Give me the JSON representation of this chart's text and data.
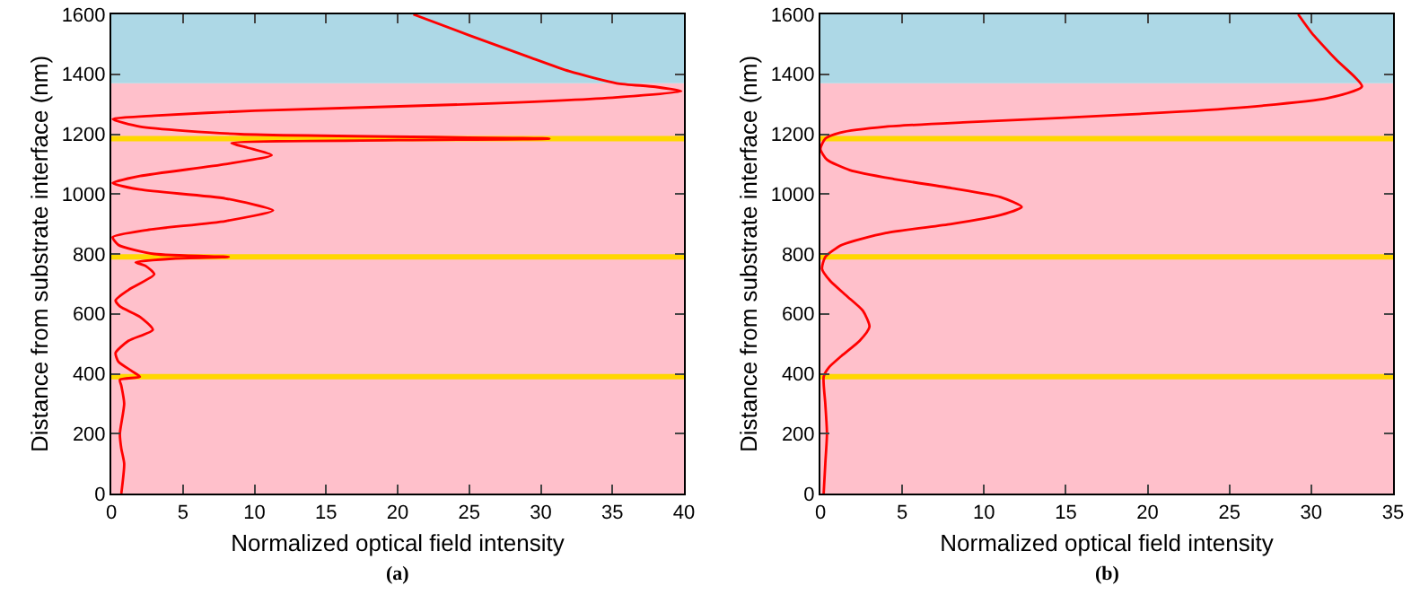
{
  "chart_data": [
    {
      "type": "line",
      "xlabel": "Normalized optical field intensity",
      "ylabel": "Distance from substrate interface (nm)",
      "xlim": [
        0,
        40
      ],
      "xticks": [
        0,
        5,
        10,
        15,
        20,
        25,
        30,
        35,
        40
      ],
      "ylim": [
        0,
        1600
      ],
      "yticks": [
        0,
        200,
        400,
        600,
        800,
        1000,
        1200,
        1400,
        1600
      ],
      "grid": false,
      "annotations": [
        "(a)"
      ],
      "bands": [
        {
          "axis": "y",
          "from": 0,
          "to": 1370,
          "color": "#ffc0cb"
        },
        {
          "axis": "y",
          "from": 1370,
          "to": 1600,
          "color": "#add8e6"
        }
      ],
      "ref_lines": [
        {
          "axis": "y",
          "value": 390,
          "color": "#ffd700"
        },
        {
          "axis": "y",
          "value": 790,
          "color": "#ffd700"
        },
        {
          "axis": "y",
          "value": 1185,
          "color": "#ffd700"
        }
      ],
      "series": [
        {
          "color": "#ff0000",
          "x": [
            0.7,
            0.9,
            0.7,
            0.6,
            0.9,
            0.7,
            0.6,
            2.0,
            1.4,
            0.5,
            0.3,
            1.2,
            2.9,
            2.0,
            0.6,
            0.3,
            1.2,
            3.0,
            2.4,
            1.7,
            4.5,
            8.2,
            3.0,
            0.5,
            0.1,
            2.5,
            8.0,
            11.3,
            8.0,
            2.0,
            0.1,
            2.0,
            8.0,
            11.2,
            9.5,
            8.4,
            20.0,
            30.6,
            9.0,
            2.0,
            0.1,
            3.0,
            10.0,
            25.0,
            35.0,
            39.8,
            38.0,
            35.3,
            32.0,
            29.1,
            25.0,
            21.1
          ],
          "values": [
            0,
            100,
            150,
            200,
            300,
            360,
            380,
            390,
            410,
            440,
            470,
            510,
            547,
            590,
            625,
            645,
            680,
            732,
            760,
            772,
            785,
            790,
            800,
            830,
            856,
            880,
            910,
            945,
            985,
            1015,
            1037,
            1060,
            1100,
            1130,
            1155,
            1170,
            1180,
            1185,
            1200,
            1225,
            1250,
            1262,
            1278,
            1300,
            1322,
            1343,
            1358,
            1370,
            1410,
            1459,
            1530,
            1600
          ]
        }
      ]
    },
    {
      "type": "line",
      "xlabel": "Normalized optical field intensity",
      "ylabel": "Distance from substrate interface (nm)",
      "xlim": [
        0,
        35
      ],
      "xticks": [
        0,
        5,
        10,
        15,
        20,
        25,
        30,
        35
      ],
      "ylim": [
        0,
        1600
      ],
      "yticks": [
        0,
        200,
        400,
        600,
        800,
        1000,
        1200,
        1400,
        1600
      ],
      "grid": false,
      "annotations": [
        "(b)"
      ],
      "bands": [
        {
          "axis": "y",
          "from": 0,
          "to": 1370,
          "color": "#ffc0cb"
        },
        {
          "axis": "y",
          "from": 1370,
          "to": 1600,
          "color": "#add8e6"
        }
      ],
      "ref_lines": [
        {
          "axis": "y",
          "value": 390,
          "color": "#ffd700"
        },
        {
          "axis": "y",
          "value": 790,
          "color": "#ffd700"
        },
        {
          "axis": "y",
          "value": 1185,
          "color": "#ffd700"
        }
      ],
      "series": [
        {
          "color": "#ff0000",
          "x": [
            0.2,
            0.3,
            0.4,
            0.3,
            0.2,
            0.5,
            1.3,
            2.4,
            3.0,
            2.6,
            1.6,
            0.6,
            0.1,
            0.3,
            1.3,
            4.0,
            8.0,
            11.0,
            12.3,
            11.0,
            8.0,
            4.5,
            1.8,
            0.4,
            0.0,
            0.3,
            1.2,
            4.0,
            9.0,
            15.0,
            22.0,
            27.0,
            31.0,
            33.1,
            31.5,
            30.0,
            29.2
          ],
          "values": [
            0,
            100,
            200,
            300,
            390,
            420,
            460,
            510,
            557,
            610,
            660,
            710,
            750,
            790,
            830,
            870,
            900,
            930,
            957,
            990,
            1020,
            1050,
            1080,
            1115,
            1150,
            1185,
            1205,
            1225,
            1240,
            1255,
            1275,
            1295,
            1320,
            1359,
            1450,
            1540,
            1600
          ]
        }
      ]
    }
  ]
}
